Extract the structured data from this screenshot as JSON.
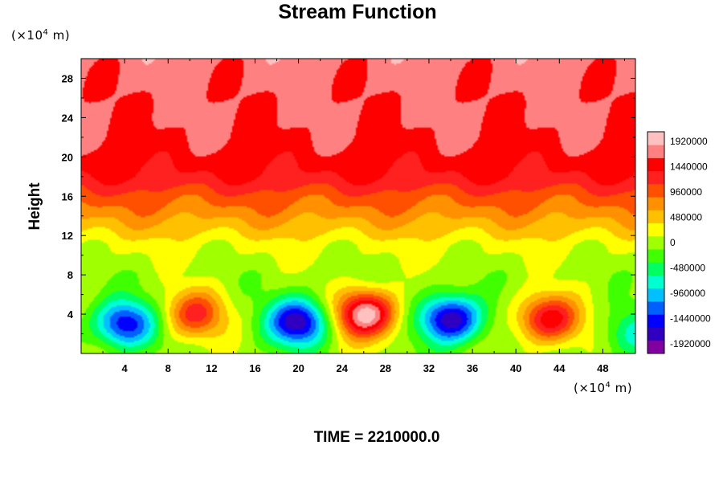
{
  "chart_data": {
    "type": "heatmap",
    "title": "Stream Function",
    "ylabel": "Height",
    "x_unit": {
      "base": "(×10",
      "exp": "4",
      "rest": " m)"
    },
    "y_unit": {
      "base": "(×10",
      "exp": "4",
      "rest": " m)"
    },
    "xlim": [
      0,
      51
    ],
    "ylim": [
      0,
      30
    ],
    "x_ticks": [
      4,
      8,
      12,
      16,
      20,
      24,
      28,
      32,
      36,
      40,
      44,
      48
    ],
    "y_ticks": [
      4,
      8,
      12,
      16,
      20,
      24,
      28
    ],
    "colorbar": {
      "range": [
        -2100000,
        2100000
      ],
      "labels": [
        1920000,
        1440000,
        960000,
        480000,
        0,
        -480000,
        -960000,
        -1440000,
        -1920000
      ],
      "colors": [
        "#8000a0",
        "#3000c0",
        "#0000ff",
        "#0060ff",
        "#00c0ff",
        "#00ffd0",
        "#00ff60",
        "#40ff00",
        "#a0ff00",
        "#ffff00",
        "#ffc000",
        "#ff9000",
        "#ff5000",
        "#ff2020",
        "#ff0000",
        "#ff8080",
        "#ffc0c0"
      ]
    },
    "background": {
      "profile_height": [
        0,
        8,
        11,
        14,
        16,
        18,
        20,
        22,
        30
      ],
      "profile_value": [
        0,
        0,
        200000,
        700000,
        1000000,
        1350000,
        1500000,
        1600000,
        1700000
      ]
    },
    "cells": [
      {
        "x": 4,
        "y": 3,
        "value": -1550000
      },
      {
        "x": 10.5,
        "y": 4,
        "value": 1150000
      },
      {
        "x": 20,
        "y": 3.2,
        "value": -1800000
      },
      {
        "x": 26.2,
        "y": 4,
        "value": 2050000
      },
      {
        "x": 34,
        "y": 3.5,
        "value": -1900000
      },
      {
        "x": 43,
        "y": 3.5,
        "value": 1550000
      },
      {
        "x": 51,
        "y": 2,
        "value": -700000
      }
    ]
  },
  "time_label": "TIME = 2210000.0"
}
